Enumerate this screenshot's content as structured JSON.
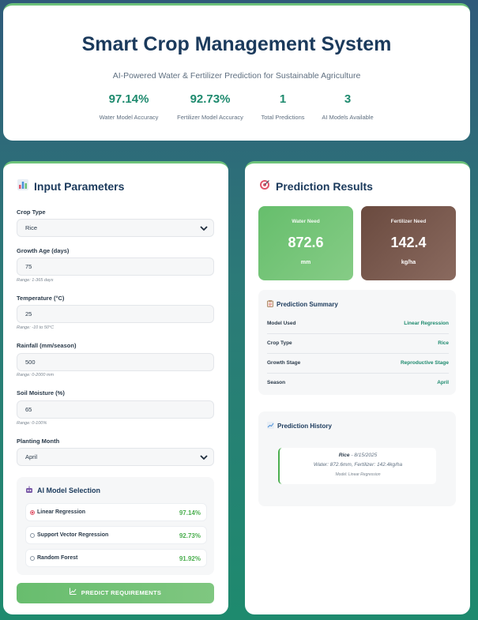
{
  "header": {
    "title": "Smart Crop Management System",
    "subtitle": "AI-Powered Water & Fertilizer Prediction for Sustainable Agriculture",
    "stats": [
      {
        "value": "97.14%",
        "label": "Water Model Accuracy"
      },
      {
        "value": "92.73%",
        "label": "Fertilizer Model Accuracy"
      },
      {
        "value": "1",
        "label": "Total Predictions"
      },
      {
        "value": "3",
        "label": "AI Models Available"
      }
    ]
  },
  "input_panel": {
    "title": "Input Parameters",
    "icon": "bar-chart-icon",
    "crop_type": {
      "label": "Crop Type",
      "value": "Rice"
    },
    "growth_age": {
      "label": "Growth Age (days)",
      "value": "75",
      "hint": "Range: 1-365 days"
    },
    "temperature": {
      "label": "Temperature (°C)",
      "value": "25",
      "hint": "Range: -10 to 50°C"
    },
    "rainfall": {
      "label": "Rainfall (mm/season)",
      "value": "500",
      "hint": "Range: 0-2000 mm"
    },
    "soil_moisture": {
      "label": "Soil Moisture (%)",
      "value": "65",
      "hint": "Range: 0-100%"
    },
    "planting_month": {
      "label": "Planting Month",
      "value": "April"
    },
    "ai_selection": {
      "title": "AI Model Selection",
      "icon": "robot-icon",
      "models": [
        {
          "name": "Linear Regression",
          "accuracy": "97.14%",
          "selected": true
        },
        {
          "name": "Support Vector Regression",
          "accuracy": "92.73%",
          "selected": false
        },
        {
          "name": "Random Forest",
          "accuracy": "91.92%",
          "selected": false
        }
      ]
    },
    "predict_button": "PREDICT REQUIREMENTS",
    "colors": {
      "accent": "#1e8a6e",
      "button": "#6cc27a"
    }
  },
  "results_panel": {
    "title": "Prediction Results",
    "icon": "target-icon",
    "water": {
      "title": "Water Need",
      "value": "872.6",
      "unit": "mm",
      "color": "#6cc27a"
    },
    "fertilizer": {
      "title": "Fertilizer Need",
      "value": "142.4",
      "unit": "kg/ha",
      "color": "#7a5a4f"
    },
    "summary": {
      "title": "Prediction Summary",
      "icon": "clipboard-icon",
      "rows": [
        {
          "key": "Model Used",
          "value": "Linear Regression"
        },
        {
          "key": "Crop Type",
          "value": "Rice"
        },
        {
          "key": "Growth Stage",
          "value": "Reproductive Stage"
        },
        {
          "key": "Season",
          "value": "April"
        }
      ]
    },
    "history": {
      "title": "Prediction History",
      "icon": "chart-up-icon",
      "items": [
        {
          "crop": "Rice",
          "date": " - 8/15/2025",
          "line2": "Water: 872.6mm, Fertilizer: 142.4kg/ha",
          "line3": "Model: Linear Regression"
        }
      ]
    }
  }
}
